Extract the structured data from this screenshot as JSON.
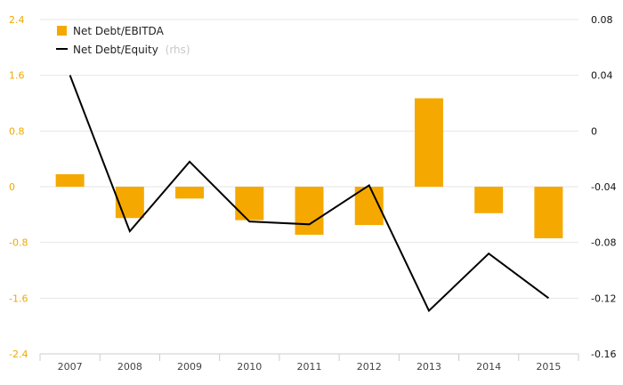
{
  "chart_data": {
    "type": "bar",
    "categories": [
      "2007",
      "2008",
      "2009",
      "2010",
      "2011",
      "2012",
      "2013",
      "2014",
      "2015"
    ],
    "series": [
      {
        "name": "Net Debt/EBITDA",
        "type": "bar",
        "axis": "left",
        "color": "#f5a900",
        "values": [
          0.18,
          -0.45,
          -0.17,
          -0.48,
          -0.69,
          -0.55,
          1.27,
          -0.38,
          -0.74
        ]
      },
      {
        "name": "Net Debt/Equity",
        "type": "line",
        "axis": "right",
        "color": "#000000",
        "values": [
          0.04,
          -0.072,
          -0.022,
          -0.065,
          -0.067,
          -0.039,
          -0.129,
          -0.088,
          -0.12
        ]
      }
    ],
    "y_left": {
      "ylim": [
        -2.4,
        2.4
      ],
      "ticks": [
        "2.4",
        "1.6",
        "0.8",
        "0",
        "-0.8",
        "-1.6",
        "-2.4"
      ],
      "tick_values": [
        2.4,
        1.6,
        0.8,
        0,
        -0.8,
        -1.6,
        -2.4
      ],
      "color": "#f0a800"
    },
    "y_right": {
      "ylim": [
        -0.16,
        0.08
      ],
      "ticks": [
        "0.08",
        "0.04",
        "0",
        "-0.04",
        "-0.08",
        "-0.12",
        "-0.16"
      ],
      "tick_values": [
        0.08,
        0.04,
        0,
        -0.04,
        -0.08,
        -0.12,
        -0.16
      ],
      "color": "#111111"
    },
    "legend": {
      "placement": "top-left",
      "items": [
        {
          "label": "Net Debt/EBITDA",
          "suffix": ""
        },
        {
          "label": "Net Debt/Equity",
          "suffix": "(rhs)"
        }
      ]
    },
    "grid": true
  }
}
